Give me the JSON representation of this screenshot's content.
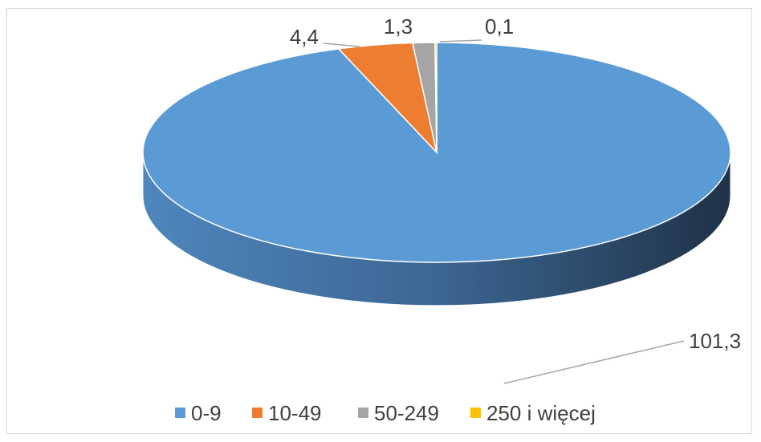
{
  "chart_data": {
    "type": "pie",
    "title": "",
    "categories": [
      "0-9",
      "10-49",
      "50-249",
      "250 i więcej"
    ],
    "values": [
      101.3,
      4.4,
      1.3,
      0.1
    ],
    "data_labels": [
      "101,3",
      "4,4",
      "1,3",
      "0,1"
    ],
    "colors": [
      "#5b9bd5",
      "#ed7d31",
      "#a5a5a5",
      "#ffc000"
    ],
    "legend_position": "bottom",
    "three_d": true
  }
}
